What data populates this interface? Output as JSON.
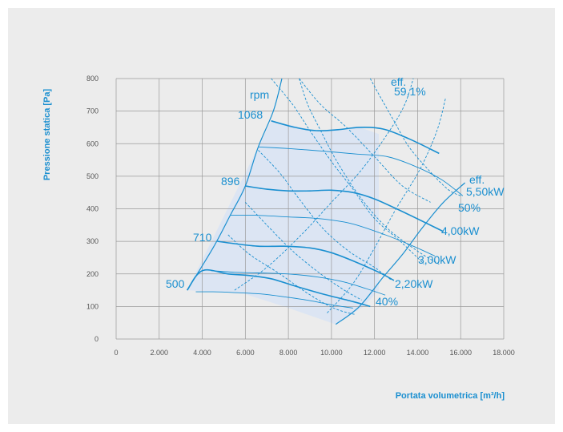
{
  "chart_data": {
    "type": "line",
    "xlabel": "Portata volumetrica [m³/h]",
    "ylabel": "Pressione statica [Pa]",
    "xlim": [
      0,
      18000
    ],
    "ylim": [
      0,
      800
    ],
    "grid": true,
    "x_ticks": [
      0,
      2000,
      4000,
      6000,
      8000,
      10000,
      12000,
      14000,
      16000,
      18000
    ],
    "x_tick_labels": [
      "0",
      "2.000",
      "4.000",
      "6.000",
      "8.000",
      "10.000",
      "12.000",
      "14.000",
      "16.000",
      "18.000"
    ],
    "y_ticks": [
      0,
      100,
      200,
      300,
      400,
      500,
      600,
      700,
      800
    ],
    "y_tick_labels": [
      "0",
      "100",
      "200",
      "300",
      "400",
      "500",
      "600",
      "700",
      "800"
    ],
    "operating_area": [
      [
        3300,
        150
      ],
      [
        7200,
        670
      ],
      [
        9300,
        640
      ],
      [
        11300,
        650
      ],
      [
        12200,
        630
      ],
      [
        12200,
        150
      ],
      [
        11500,
        100
      ],
      [
        10200,
        45
      ],
      [
        7800,
        100
      ],
      [
        5900,
        140
      ]
    ],
    "rpm_curves": [
      {
        "label": "1068",
        "points": [
          [
            7200,
            670
          ],
          [
            8300,
            650
          ],
          [
            9300,
            640
          ],
          [
            10300,
            643
          ],
          [
            11300,
            650
          ],
          [
            12400,
            645
          ],
          [
            13600,
            615
          ],
          [
            15000,
            570
          ]
        ]
      },
      {
        "label": "896",
        "points": [
          [
            6000,
            470
          ],
          [
            7000,
            460
          ],
          [
            8000,
            455
          ],
          [
            9000,
            455
          ],
          [
            10000,
            457
          ],
          [
            11000,
            450
          ],
          [
            12000,
            430
          ],
          [
            13500,
            385
          ],
          [
            15200,
            330
          ]
        ]
      },
      {
        "label": "710",
        "points": [
          [
            4700,
            300
          ],
          [
            5500,
            293
          ],
          [
            6600,
            285
          ],
          [
            7800,
            285
          ],
          [
            9000,
            280
          ],
          [
            10000,
            265
          ],
          [
            11000,
            240
          ],
          [
            12200,
            205
          ],
          [
            12900,
            180
          ]
        ]
      },
      {
        "label": "500",
        "points": [
          [
            3300,
            150
          ],
          [
            4000,
            210
          ],
          [
            5200,
            200
          ],
          [
            6200,
            195
          ],
          [
            7200,
            185
          ],
          [
            8200,
            165
          ],
          [
            9500,
            140
          ],
          [
            11000,
            115
          ],
          [
            11800,
            100
          ]
        ]
      }
    ],
    "power_curves": [
      {
        "label": "5,50kW",
        "points": [
          [
            6600,
            590
          ],
          [
            8000,
            585
          ],
          [
            9600,
            577
          ],
          [
            11200,
            568
          ],
          [
            12600,
            560
          ],
          [
            13900,
            530
          ],
          [
            15100,
            490
          ],
          [
            16100,
            440
          ]
        ]
      },
      {
        "label": "4,00kW",
        "points": [
          [
            5300,
            380
          ],
          [
            6500,
            380
          ],
          [
            8000,
            375
          ],
          [
            9400,
            370
          ],
          [
            10900,
            355
          ],
          [
            12500,
            320
          ],
          [
            13800,
            285
          ],
          [
            14800,
            255
          ]
        ]
      },
      {
        "label": "3,00kW",
        "points": [
          [
            4400,
            210
          ],
          [
            5500,
            205
          ],
          [
            6600,
            203
          ],
          [
            8000,
            200
          ],
          [
            9400,
            190
          ],
          [
            10600,
            175
          ],
          [
            11600,
            155
          ],
          [
            12500,
            135
          ]
        ]
      },
      {
        "label": "2,20kW",
        "points": [
          [
            3700,
            145
          ],
          [
            4500,
            145
          ],
          [
            5400,
            143
          ],
          [
            6800,
            138
          ],
          [
            8000,
            128
          ],
          [
            9000,
            118
          ],
          [
            10000,
            105
          ],
          [
            11000,
            95
          ]
        ]
      }
    ],
    "min_line": [
      [
        3300,
        150
      ],
      [
        4500,
        280
      ],
      [
        5300,
        380
      ],
      [
        6000,
        470
      ],
      [
        6600,
        590
      ],
      [
        7300,
        700
      ],
      [
        7700,
        800
      ]
    ],
    "max_line": [
      [
        10200,
        45
      ],
      [
        11300,
        100
      ],
      [
        12400,
        190
      ],
      [
        13300,
        260
      ],
      [
        14200,
        340
      ],
      [
        15200,
        420
      ],
      [
        16200,
        480
      ]
    ],
    "efficiency_lines": [
      [
        [
          8500,
          800
        ],
        [
          9500,
          720
        ],
        [
          10700,
          650
        ],
        [
          12000,
          560
        ],
        [
          13300,
          470
        ],
        [
          14600,
          420
        ]
      ],
      [
        [
          7200,
          800
        ],
        [
          8200,
          720
        ],
        [
          9000,
          640
        ],
        [
          10000,
          545
        ],
        [
          11000,
          460
        ],
        [
          12000,
          370
        ],
        [
          13200,
          300
        ],
        [
          14300,
          230
        ]
      ],
      [
        [
          6600,
          580
        ],
        [
          7600,
          510
        ],
        [
          8500,
          430
        ],
        [
          9600,
          340
        ],
        [
          10800,
          270
        ],
        [
          12000,
          220
        ],
        [
          12800,
          180
        ]
      ],
      [
        [
          6000,
          420
        ],
        [
          7000,
          350
        ],
        [
          8200,
          270
        ],
        [
          9500,
          200
        ],
        [
          10600,
          150
        ],
        [
          11400,
          120
        ]
      ],
      [
        [
          5200,
          320
        ],
        [
          6200,
          260
        ],
        [
          7600,
          200
        ],
        [
          8900,
          140
        ],
        [
          10100,
          95
        ],
        [
          11100,
          75
        ]
      ]
    ],
    "system_curves": [
      [
        [
          8500,
          800
        ],
        [
          8900,
          720
        ],
        [
          9500,
          640
        ],
        [
          10300,
          540
        ],
        [
          11400,
          430
        ],
        [
          12600,
          340
        ],
        [
          14000,
          270
        ],
        [
          15000,
          230
        ]
      ],
      [
        [
          11800,
          800
        ],
        [
          12300,
          740
        ],
        [
          12900,
          670
        ],
        [
          13600,
          590
        ],
        [
          14500,
          520
        ],
        [
          15400,
          460
        ],
        [
          16000,
          440
        ]
      ],
      [
        [
          5500,
          150
        ],
        [
          7000,
          220
        ],
        [
          8600,
          320
        ],
        [
          10000,
          420
        ],
        [
          11400,
          520
        ],
        [
          12700,
          640
        ],
        [
          13400,
          720
        ],
        [
          13800,
          800
        ]
      ],
      [
        [
          9800,
          80
        ],
        [
          11000,
          170
        ],
        [
          12000,
          280
        ],
        [
          13000,
          400
        ],
        [
          14100,
          520
        ],
        [
          14900,
          640
        ],
        [
          15300,
          740
        ]
      ]
    ],
    "labels": {
      "rpm": "rpm",
      "rpm_1068": "1068",
      "rpm_896": "896",
      "rpm_710": "710",
      "rpm_500": "500",
      "eff_top": "eff.",
      "eff_top_value": "59,1%",
      "eff_right": "eff.",
      "kw_550": "5,50kW",
      "pct_50": "50%",
      "kw_400": "4,00kW",
      "kw_300": "3,00kW",
      "kw_220": "2,20kW",
      "pct_40": "40%"
    }
  },
  "colors": {
    "accent": "#1a8fd0",
    "area": "#d9e4f5",
    "grid": "#9a9a9a",
    "panel": "#ececec"
  }
}
